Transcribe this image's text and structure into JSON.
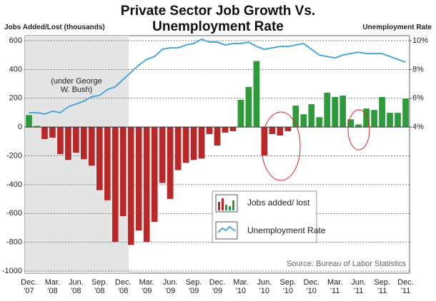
{
  "chart_data": {
    "type": "bar_line",
    "title": "Private Sector Job Growth Vs.\nUnemployment Rate",
    "y_label": "Jobs Added/Lost (thousands)",
    "y2_label": "Unemployment Rate",
    "annotation": "(under George\nW. Bush)",
    "source": "Source: Bureau of Labor Statistics",
    "categories": [
      "Dec.\n'07",
      null,
      null,
      "Mar.\n'08",
      null,
      null,
      "Jun.\n'08",
      null,
      null,
      "Sep.\n'08",
      null,
      null,
      "Dec.\n'08",
      null,
      null,
      "Mar.\n'09",
      null,
      null,
      "Jun.\n'09",
      null,
      null,
      "Sep.\n'09",
      null,
      null,
      "Dec.\n'09",
      null,
      null,
      "Mar.\n'10",
      null,
      null,
      "Jun.\n'10",
      null,
      null,
      "Sep.\n'10",
      null,
      null,
      "Dec.\n'10",
      null,
      null,
      "Mar.\n'11",
      null,
      null,
      "Jun.\n'11",
      null,
      null,
      "Sep.\n'11",
      null,
      null,
      "Dec.\n'11"
    ],
    "series": [
      {
        "name": "Jobs added/ lost",
        "color": "#2f9a3c",
        "negative_color": "#b82828",
        "values": [
          85,
          10,
          -85,
          -75,
          -190,
          -230,
          -180,
          -225,
          -270,
          -440,
          -510,
          -800,
          -620,
          -820,
          -720,
          -800,
          -660,
          -390,
          -500,
          -300,
          -250,
          -230,
          -220,
          -50,
          -130,
          -40,
          -30,
          190,
          280,
          460,
          -200,
          -50,
          -60,
          -30,
          150,
          90,
          160,
          70,
          240,
          210,
          220,
          55,
          20,
          130,
          120,
          210,
          100,
          100,
          200
        ]
      },
      {
        "name": "Unemployment Rate",
        "color": "#4aa8d8",
        "axis": "y2",
        "values": [
          5.0,
          5.0,
          4.9,
          5.1,
          5.0,
          5.4,
          5.6,
          5.8,
          6.1,
          6.2,
          6.6,
          6.8,
          7.3,
          7.8,
          8.3,
          8.7,
          8.9,
          9.4,
          9.5,
          9.5,
          9.7,
          9.8,
          10.1,
          9.9,
          9.9,
          9.7,
          9.8,
          9.8,
          9.9,
          9.6,
          9.4,
          9.5,
          9.6,
          9.6,
          9.7,
          9.8,
          9.4,
          9.0,
          8.9,
          8.8,
          9.0,
          9.1,
          9.2,
          9.1,
          9.1,
          9.1,
          8.9,
          8.7,
          8.5
        ]
      }
    ],
    "ylim": [
      -1000,
      600
    ],
    "yticks": [
      -1000,
      -800,
      -600,
      -400,
      -200,
      0,
      200,
      400,
      600
    ],
    "y2lim": [
      -6,
      10
    ],
    "y2ticks": [
      {
        "value": 4,
        "label": "4%"
      },
      {
        "value": 6,
        "label": "6%"
      },
      {
        "value": 8,
        "label": "8%"
      },
      {
        "value": 10,
        "label": "10%"
      }
    ],
    "grid": true
  }
}
